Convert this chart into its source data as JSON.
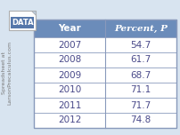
{
  "years": [
    "2007",
    "2008",
    "2009",
    "2010",
    "2011",
    "2012"
  ],
  "percents": [
    "54.7",
    "61.7",
    "68.7",
    "71.1",
    "71.7",
    "74.8"
  ],
  "header_year": "Year",
  "header_percent": "Percent, P",
  "header_bg": "#6b8cba",
  "header_text_color": "#ffffff",
  "row_bg": "#ffffff",
  "row_text_color": "#4a4a8a",
  "border_color": "#8899bb",
  "side_text": "Spreadsheet at\nLarsonPrecalculus.com",
  "side_text_color": "#7a7a7a",
  "data_label": "DATA",
  "fig_bg": "#d8e4f0"
}
